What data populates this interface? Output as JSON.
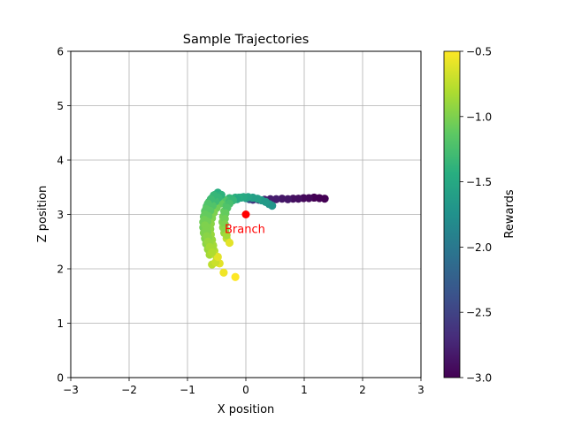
{
  "chart_data": {
    "type": "scatter",
    "title": "Sample Trajectories",
    "xlabel": "X position",
    "ylabel": "Z position",
    "xlim": [
      -3,
      3
    ],
    "ylim": [
      0,
      6
    ],
    "xticks": [
      "−3",
      "−2",
      "−1",
      "0",
      "1",
      "2",
      "3"
    ],
    "yticks": [
      "0",
      "1",
      "2",
      "3",
      "4",
      "5",
      "6"
    ],
    "grid": true,
    "colorbar": {
      "label": "Rewards",
      "range": [
        -3.0,
        -0.5
      ],
      "colormap": "viridis",
      "ticks": [
        "−0.5",
        "−1.0",
        "−1.5",
        "−2.0",
        "−2.5",
        "−3.0"
      ]
    },
    "annotation": {
      "text": "Branch",
      "x": 0.0,
      "y": 3.0,
      "color": "#ff0000"
    },
    "trajectories": [
      {
        "points": [
          {
            "x": 1.35,
            "y": 3.29,
            "r": -3.0
          },
          {
            "x": 1.26,
            "y": 3.3,
            "r": -3.0
          },
          {
            "x": 1.17,
            "y": 3.31,
            "r": -3.0
          },
          {
            "x": 1.08,
            "y": 3.3,
            "r": -2.95
          },
          {
            "x": 0.99,
            "y": 3.3,
            "r": -2.95
          },
          {
            "x": 0.9,
            "y": 3.29,
            "r": -2.9
          },
          {
            "x": 0.81,
            "y": 3.29,
            "r": -2.9
          },
          {
            "x": 0.72,
            "y": 3.28,
            "r": -2.85
          },
          {
            "x": 0.62,
            "y": 3.29,
            "r": -2.85
          },
          {
            "x": 0.52,
            "y": 3.28,
            "r": -2.8
          },
          {
            "x": 0.42,
            "y": 3.28,
            "r": -2.8
          },
          {
            "x": 0.32,
            "y": 3.27,
            "r": -2.75
          },
          {
            "x": 0.22,
            "y": 3.27,
            "r": -2.7
          },
          {
            "x": 0.12,
            "y": 3.27,
            "r": -2.6
          },
          {
            "x": 0.06,
            "y": 3.28,
            "r": -2.4
          },
          {
            "x": 0.0,
            "y": 3.3,
            "r": -1.65
          },
          {
            "x": -0.08,
            "y": 3.31,
            "r": -1.55
          },
          {
            "x": -0.18,
            "y": 3.31,
            "r": -1.45
          },
          {
            "x": -0.28,
            "y": 3.3,
            "r": -1.35
          },
          {
            "x": -0.36,
            "y": 3.26,
            "r": -1.2
          },
          {
            "x": -0.43,
            "y": 3.2,
            "r": -1.1
          },
          {
            "x": -0.5,
            "y": 3.12,
            "r": -1.05
          },
          {
            "x": -0.55,
            "y": 3.03,
            "r": -1.0
          },
          {
            "x": -0.58,
            "y": 2.93,
            "r": -1.0
          },
          {
            "x": -0.6,
            "y": 2.83,
            "r": -0.95
          },
          {
            "x": -0.61,
            "y": 2.73,
            "r": -0.95
          },
          {
            "x": -0.6,
            "y": 2.63,
            "r": -0.9
          },
          {
            "x": -0.58,
            "y": 2.53,
            "r": -0.9
          },
          {
            "x": -0.56,
            "y": 2.43,
            "r": -0.85
          },
          {
            "x": -0.54,
            "y": 2.33,
            "r": -0.8
          },
          {
            "x": -0.5,
            "y": 2.22,
            "r": -0.7
          },
          {
            "x": -0.45,
            "y": 2.1,
            "r": -0.6
          },
          {
            "x": -0.38,
            "y": 1.93,
            "r": -0.55
          },
          {
            "x": -0.18,
            "y": 1.85,
            "r": -0.5
          }
        ]
      },
      {
        "points": [
          {
            "x": 0.45,
            "y": 3.16,
            "r": -1.7
          },
          {
            "x": 0.4,
            "y": 3.19,
            "r": -1.7
          },
          {
            "x": 0.34,
            "y": 3.23,
            "r": -1.65
          },
          {
            "x": 0.27,
            "y": 3.26,
            "r": -1.65
          },
          {
            "x": 0.2,
            "y": 3.29,
            "r": -1.6
          },
          {
            "x": 0.12,
            "y": 3.31,
            "r": -1.6
          },
          {
            "x": 0.04,
            "y": 3.32,
            "r": -1.55
          },
          {
            "x": -0.04,
            "y": 3.32,
            "r": -1.5
          },
          {
            "x": -0.12,
            "y": 3.31,
            "r": -1.45
          },
          {
            "x": -0.2,
            "y": 3.29,
            "r": -1.4
          },
          {
            "x": -0.28,
            "y": 3.24,
            "r": -1.3
          },
          {
            "x": -0.33,
            "y": 3.16,
            "r": -1.2
          },
          {
            "x": -0.37,
            "y": 3.06,
            "r": -1.1
          },
          {
            "x": -0.39,
            "y": 2.96,
            "r": -1.05
          },
          {
            "x": -0.4,
            "y": 2.86,
            "r": -1.0
          },
          {
            "x": -0.39,
            "y": 2.76,
            "r": -0.95
          },
          {
            "x": -0.37,
            "y": 2.66,
            "r": -0.9
          },
          {
            "x": -0.33,
            "y": 2.56,
            "r": -0.75
          },
          {
            "x": -0.28,
            "y": 2.48,
            "r": -0.6
          }
        ]
      },
      {
        "points": [
          {
            "x": -0.48,
            "y": 3.4,
            "r": -1.45
          },
          {
            "x": -0.53,
            "y": 3.36,
            "r": -1.4
          },
          {
            "x": -0.58,
            "y": 3.3,
            "r": -1.35
          },
          {
            "x": -0.63,
            "y": 3.23,
            "r": -1.25
          },
          {
            "x": -0.67,
            "y": 3.15,
            "r": -1.2
          },
          {
            "x": -0.7,
            "y": 3.06,
            "r": -1.15
          },
          {
            "x": -0.72,
            "y": 2.96,
            "r": -1.1
          },
          {
            "x": -0.73,
            "y": 2.86,
            "r": -1.05
          },
          {
            "x": -0.73,
            "y": 2.76,
            "r": -1.05
          },
          {
            "x": -0.72,
            "y": 2.66,
            "r": -1.0
          },
          {
            "x": -0.7,
            "y": 2.56,
            "r": -1.0
          },
          {
            "x": -0.68,
            "y": 2.46,
            "r": -0.95
          },
          {
            "x": -0.65,
            "y": 2.36,
            "r": -0.9
          },
          {
            "x": -0.62,
            "y": 2.26,
            "r": -0.85
          },
          {
            "x": -0.58,
            "y": 2.08,
            "r": -0.75
          },
          {
            "x": -0.52,
            "y": 2.12,
            "r": -0.7
          }
        ]
      },
      {
        "points": [
          {
            "x": -0.42,
            "y": 3.36,
            "r": -1.4
          },
          {
            "x": -0.47,
            "y": 3.31,
            "r": -1.35
          },
          {
            "x": -0.52,
            "y": 3.24,
            "r": -1.3
          },
          {
            "x": -0.57,
            "y": 3.16,
            "r": -1.2
          },
          {
            "x": -0.61,
            "y": 3.07,
            "r": -1.15
          },
          {
            "x": -0.64,
            "y": 2.97,
            "r": -1.1
          },
          {
            "x": -0.66,
            "y": 2.87,
            "r": -1.05
          },
          {
            "x": -0.67,
            "y": 2.77,
            "r": -1.0
          },
          {
            "x": -0.66,
            "y": 2.67,
            "r": -1.0
          },
          {
            "x": -0.64,
            "y": 2.57,
            "r": -0.95
          },
          {
            "x": -0.62,
            "y": 2.47,
            "r": -0.9
          },
          {
            "x": -0.58,
            "y": 2.37,
            "r": -0.85
          },
          {
            "x": -0.54,
            "y": 2.27,
            "r": -0.75
          },
          {
            "x": -0.48,
            "y": 2.22,
            "r": -0.6
          }
        ]
      },
      {
        "points": [
          {
            "x": -0.55,
            "y": 3.35,
            "r": -1.35
          },
          {
            "x": -0.6,
            "y": 3.28,
            "r": -1.3
          },
          {
            "x": -0.65,
            "y": 3.2,
            "r": -1.2
          },
          {
            "x": -0.68,
            "y": 3.1,
            "r": -1.15
          },
          {
            "x": -0.7,
            "y": 3.0,
            "r": -1.1
          },
          {
            "x": -0.71,
            "y": 2.9,
            "r": -1.05
          },
          {
            "x": -0.7,
            "y": 2.8,
            "r": -1.0
          },
          {
            "x": -0.69,
            "y": 2.7,
            "r": -1.0
          },
          {
            "x": -0.67,
            "y": 2.6,
            "r": -0.95
          },
          {
            "x": -0.65,
            "y": 2.5,
            "r": -0.9
          },
          {
            "x": -0.62,
            "y": 2.4,
            "r": -0.85
          },
          {
            "x": -0.58,
            "y": 2.3,
            "r": -0.8
          }
        ]
      },
      {
        "points": [
          {
            "x": -0.15,
            "y": 3.28,
            "r": -1.5
          },
          {
            "x": -0.22,
            "y": 3.26,
            "r": -1.35
          },
          {
            "x": -0.28,
            "y": 3.2,
            "r": -1.25
          },
          {
            "x": -0.32,
            "y": 3.12,
            "r": -1.2
          },
          {
            "x": -0.35,
            "y": 3.02,
            "r": -1.1
          },
          {
            "x": -0.36,
            "y": 2.92,
            "r": -1.05
          },
          {
            "x": -0.36,
            "y": 2.82,
            "r": -1.0
          },
          {
            "x": -0.35,
            "y": 2.72,
            "r": -0.95
          },
          {
            "x": -0.33,
            "y": 2.62,
            "r": -0.85
          }
        ]
      }
    ]
  }
}
